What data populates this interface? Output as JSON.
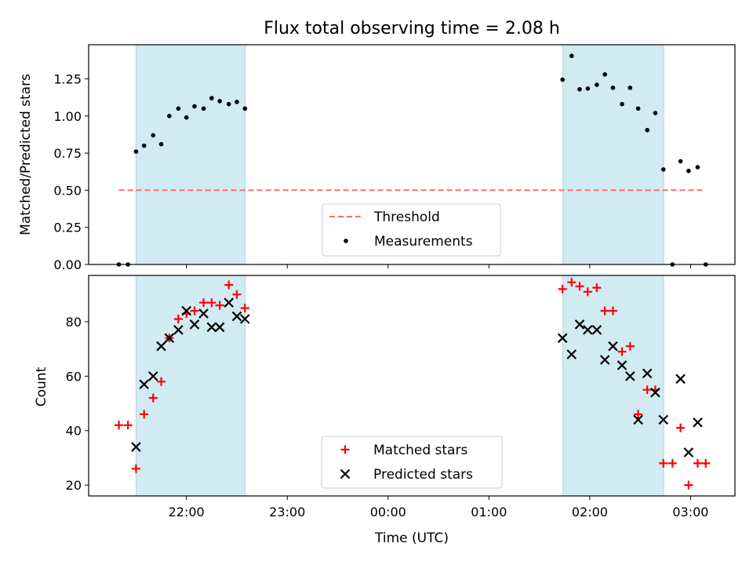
{
  "chart_data": {
    "type": "scatter",
    "title": "Flux total observing time = 2.08 h",
    "xlabel": "Time (UTC)",
    "x_tick_labels": [
      "22:00",
      "23:00",
      "00:00",
      "01:00",
      "02:00",
      "03:00"
    ],
    "x_ticks_hours": [
      22,
      23,
      24,
      25,
      26,
      27
    ],
    "x_range_hours": [
      21.03,
      27.44
    ],
    "shaded_intervals_hours": [
      [
        21.5,
        22.583
      ],
      [
        25.733,
        26.733
      ]
    ],
    "colors": {
      "shade": "#add8e6",
      "threshold": "#ff6b6b",
      "matched": "#ff0000",
      "predicted": "#000000",
      "measurements": "#000000"
    },
    "top": {
      "ylabel": "Matched/Predicted stars",
      "ylim": [
        0,
        1.48
      ],
      "y_ticks": [
        0.0,
        0.25,
        0.5,
        0.75,
        1.0,
        1.25
      ],
      "y_tick_labels": [
        "0.00",
        "0.25",
        "0.50",
        "0.75",
        "1.00",
        "1.25"
      ],
      "legend": {
        "threshold": "Threshold",
        "measurements": "Measurements",
        "placement": "lower center"
      },
      "threshold": {
        "value": 0.5,
        "x_start": 21.33,
        "x_end": 27.15
      },
      "measurements": [
        [
          21.33,
          0.0
        ],
        [
          21.42,
          0.0
        ],
        [
          21.5,
          0.76
        ],
        [
          21.58,
          0.8
        ],
        [
          21.67,
          0.87
        ],
        [
          21.75,
          0.81
        ],
        [
          21.83,
          1.0
        ],
        [
          21.92,
          1.05
        ],
        [
          22.0,
          0.99
        ],
        [
          22.08,
          1.065
        ],
        [
          22.17,
          1.05
        ],
        [
          22.25,
          1.12
        ],
        [
          22.33,
          1.1
        ],
        [
          22.42,
          1.08
        ],
        [
          22.5,
          1.095
        ],
        [
          22.58,
          1.05
        ],
        [
          25.73,
          1.245
        ],
        [
          25.82,
          1.405
        ],
        [
          25.9,
          1.18
        ],
        [
          25.98,
          1.185
        ],
        [
          26.07,
          1.21
        ],
        [
          26.15,
          1.28
        ],
        [
          26.23,
          1.19
        ],
        [
          26.32,
          1.08
        ],
        [
          26.4,
          1.19
        ],
        [
          26.48,
          1.05
        ],
        [
          26.57,
          0.905
        ],
        [
          26.65,
          1.02
        ],
        [
          26.73,
          0.64
        ],
        [
          26.82,
          0.0
        ],
        [
          26.9,
          0.695
        ],
        [
          26.98,
          0.63
        ],
        [
          27.07,
          0.655
        ],
        [
          27.15,
          0.0
        ]
      ]
    },
    "bottom": {
      "ylabel": "Count",
      "ylim": [
        16,
        97
      ],
      "y_ticks": [
        20,
        40,
        60,
        80
      ],
      "y_tick_labels": [
        "20",
        "40",
        "60",
        "80"
      ],
      "legend": {
        "matched": "Matched stars",
        "predicted": "Predicted stars",
        "placement": "lower center"
      },
      "matched": [
        [
          21.33,
          42
        ],
        [
          21.42,
          42
        ],
        [
          21.5,
          26
        ],
        [
          21.58,
          46
        ],
        [
          21.67,
          52
        ],
        [
          21.75,
          58
        ],
        [
          21.83,
          74
        ],
        [
          21.92,
          81
        ],
        [
          22.0,
          83
        ],
        [
          22.08,
          84
        ],
        [
          22.17,
          87
        ],
        [
          22.25,
          87
        ],
        [
          22.33,
          86
        ],
        [
          22.42,
          93.5
        ],
        [
          22.5,
          90
        ],
        [
          22.58,
          85
        ],
        [
          25.73,
          92
        ],
        [
          25.82,
          94.5
        ],
        [
          25.9,
          93
        ],
        [
          25.98,
          91
        ],
        [
          26.07,
          92.5
        ],
        [
          26.15,
          84
        ],
        [
          26.23,
          84
        ],
        [
          26.32,
          69
        ],
        [
          26.4,
          71
        ],
        [
          26.48,
          46
        ],
        [
          26.57,
          55
        ],
        [
          26.65,
          55
        ],
        [
          26.73,
          28
        ],
        [
          26.82,
          28
        ],
        [
          26.9,
          41
        ],
        [
          26.98,
          20
        ],
        [
          27.07,
          28
        ],
        [
          27.15,
          28
        ]
      ],
      "predicted": [
        [
          21.5,
          34
        ],
        [
          21.58,
          57
        ],
        [
          21.67,
          60
        ],
        [
          21.75,
          71
        ],
        [
          21.83,
          74
        ],
        [
          21.92,
          77
        ],
        [
          22.0,
          84
        ],
        [
          22.08,
          79
        ],
        [
          22.17,
          83
        ],
        [
          22.25,
          78
        ],
        [
          22.33,
          78
        ],
        [
          22.42,
          87
        ],
        [
          22.5,
          82
        ],
        [
          22.58,
          81
        ],
        [
          25.73,
          74
        ],
        [
          25.82,
          68
        ],
        [
          25.9,
          79
        ],
        [
          25.98,
          77
        ],
        [
          26.07,
          77
        ],
        [
          26.15,
          66
        ],
        [
          26.23,
          71
        ],
        [
          26.32,
          64
        ],
        [
          26.4,
          60
        ],
        [
          26.48,
          44
        ],
        [
          26.57,
          61
        ],
        [
          26.65,
          54
        ],
        [
          26.73,
          44
        ],
        [
          26.9,
          59
        ],
        [
          26.98,
          32
        ],
        [
          27.07,
          43
        ]
      ]
    }
  }
}
